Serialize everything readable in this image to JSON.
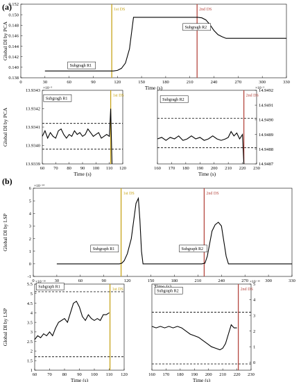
{
  "panel_labels": {
    "a": "(a)",
    "b": "(b)"
  },
  "colors": {
    "ds1": "#c7a41a",
    "ds2": "#b5473f",
    "line": "#000000"
  },
  "chart_data": [
    {
      "id": "a_top",
      "type": "line",
      "xlabel": "Time (s)",
      "ylabel": "Global DI by PCA",
      "xlim": [
        0,
        330
      ],
      "ylim": [
        0.138,
        0.152
      ],
      "xticks": [
        0,
        30,
        60,
        90,
        120,
        150,
        180,
        210,
        240,
        270,
        300,
        330
      ],
      "yticks": [
        0.138,
        0.14,
        0.142,
        0.144,
        0.146,
        0.148,
        0.15,
        0.152
      ],
      "ytick_labels": [
        "0.138",
        "0.140",
        "0.142",
        "0.144",
        "0.146",
        "0.148",
        "0.150",
        "0.152"
      ],
      "x": [
        30,
        60,
        100,
        110,
        115,
        120,
        125,
        130,
        135,
        140,
        220,
        225,
        230,
        235,
        240,
        245,
        250,
        255,
        330
      ],
      "y": [
        0.1393,
        0.1393,
        0.1393,
        0.1393,
        0.1393,
        0.1394,
        0.1398,
        0.1408,
        0.1435,
        0.1495,
        0.1495,
        0.1494,
        0.149,
        0.1481,
        0.147,
        0.1462,
        0.1458,
        0.1455,
        0.1455
      ],
      "vlines": [
        {
          "x": 113,
          "color": "ds1",
          "label": "1st DS"
        },
        {
          "x": 219,
          "color": "ds2",
          "label": "2nd DS"
        }
      ],
      "annotations": [
        {
          "text": "Subgragh R1",
          "x": 60,
          "y": 0.1401
        },
        {
          "text": "Subgragh R2",
          "x": 203,
          "y": 0.1474
        }
      ]
    },
    {
      "id": "a_left",
      "type": "line",
      "xlabel": "Time (s)",
      "ylabel": "Global DI by PCA",
      "exponent": "×10⁻²",
      "xlim": [
        60,
        120
      ],
      "ylim": [
        13.9339,
        13.9343
      ],
      "xticks": [
        60,
        70,
        80,
        90,
        100,
        110,
        120
      ],
      "yticks": [
        13.9339,
        13.934,
        13.9341,
        13.9342,
        13.9343
      ],
      "ytick_labels": [
        "13.9339",
        "13.9340",
        "13.9341",
        "13.9342",
        "13.9343"
      ],
      "x": [
        60,
        62,
        64,
        66,
        68,
        70,
        72,
        74,
        76,
        78,
        80,
        82,
        84,
        86,
        88,
        90,
        92,
        94,
        96,
        98,
        100,
        102,
        104,
        106,
        108,
        110,
        111,
        112
      ],
      "y": [
        13.93405,
        13.93408,
        13.93404,
        13.93407,
        13.93405,
        13.93404,
        13.93408,
        13.93409,
        13.93406,
        13.93404,
        13.93406,
        13.93405,
        13.93408,
        13.93406,
        13.93407,
        13.93405,
        13.93406,
        13.93409,
        13.93407,
        13.93405,
        13.93406,
        13.93407,
        13.93404,
        13.93405,
        13.93406,
        13.93405,
        13.9342,
        13.9339
      ],
      "hlines": [
        13.93412,
        13.93398
      ],
      "vlines": [
        {
          "x": 111,
          "color": "ds1",
          "label": "1st DS"
        }
      ],
      "annotations": [
        {
          "text": "Subgragh R1",
          "x": 62,
          "y": 13.93425
        }
      ]
    },
    {
      "id": "a_right",
      "type": "line",
      "xlabel": "Time (s)",
      "exponent": "×10⁻²",
      "xlim": [
        160,
        230
      ],
      "ylim": [
        14.9487,
        14.9492
      ],
      "xticks": [
        160,
        170,
        180,
        190,
        200,
        210,
        220,
        230
      ],
      "yticks": [
        14.9487,
        14.9488,
        14.9489,
        14.949,
        14.9491,
        14.9492
      ],
      "ytick_labels": [
        "14.9487",
        "14.9488",
        "14.9489",
        "14.9490",
        "14.9491",
        "14.9492"
      ],
      "x": [
        160,
        163,
        166,
        169,
        172,
        175,
        178,
        181,
        184,
        187,
        190,
        193,
        196,
        199,
        202,
        205,
        208,
        210,
        212,
        214,
        216,
        218,
        220,
        221
      ],
      "y": [
        14.94887,
        14.94888,
        14.94886,
        14.94888,
        14.94887,
        14.94889,
        14.94886,
        14.94887,
        14.94889,
        14.94887,
        14.94888,
        14.94886,
        14.94887,
        14.94889,
        14.94887,
        14.94886,
        14.94887,
        14.94888,
        14.94892,
        14.94889,
        14.94891,
        14.94887,
        14.9489,
        14.9487
      ],
      "hlines": [
        14.94901,
        14.94881
      ],
      "vlines": [
        {
          "x": 221,
          "color": "ds2",
          "label": "2nd DS"
        }
      ],
      "annotations": [
        {
          "text": "Subgragh R2",
          "x": 163,
          "y": 14.94913
        }
      ]
    },
    {
      "id": "b_top",
      "type": "line",
      "xlabel": "Time (s)",
      "ylabel": "Global DI by LSP",
      "exponent": "×10⁻¹⁴",
      "xlim": [
        0,
        330
      ],
      "ylim": [
        -1,
        6
      ],
      "xticks": [
        0,
        30,
        60,
        90,
        120,
        150,
        180,
        210,
        240,
        270,
        300,
        330
      ],
      "yticks": [
        -1,
        0,
        1,
        2,
        3,
        4,
        5,
        6
      ],
      "ytick_labels": [
        "-1",
        "0",
        "1",
        "2",
        "3",
        "4",
        "5",
        "6"
      ],
      "x": [
        30,
        60,
        100,
        110,
        113,
        116,
        120,
        125,
        128,
        131,
        134,
        136,
        138,
        140,
        215,
        219,
        222,
        225,
        228,
        232,
        236,
        240,
        243,
        246,
        249,
        330
      ],
      "y": [
        0,
        0,
        0,
        0,
        0.05,
        0.25,
        0.8,
        2.0,
        3.4,
        4.8,
        5.2,
        3.5,
        1.0,
        0,
        0,
        0.05,
        0.6,
        1.6,
        2.6,
        3.1,
        3.3,
        3.0,
        1.8,
        0.6,
        0,
        0
      ],
      "vlines": [
        {
          "x": 112,
          "color": "ds1",
          "label": "1st DS"
        },
        {
          "x": 218,
          "color": "ds2",
          "label": "2nd DS"
        }
      ],
      "annotations": [
        {
          "text": "Subgraph R1",
          "x": 75,
          "y": 1.1
        },
        {
          "text": "Subgraph R2",
          "x": 188,
          "y": 1.1
        }
      ]
    },
    {
      "id": "b_left",
      "type": "line",
      "xlabel": "Time (s)",
      "ylabel": "Global DI by LSP",
      "exponent": "×10⁻¹⁶",
      "xlim": [
        60,
        120
      ],
      "ylim": [
        1,
        5.5
      ],
      "xticks": [
        60,
        70,
        80,
        90,
        100,
        110,
        120
      ],
      "yticks": [
        1,
        1.5,
        2,
        2.5,
        3,
        3.5,
        4,
        4.5,
        5,
        5.5
      ],
      "ytick_labels": [
        "1",
        "1.5",
        "2",
        "2.5",
        "3",
        "3.5",
        "4",
        "4.5",
        "5",
        "5.5"
      ],
      "x": [
        60,
        62,
        64,
        66,
        68,
        70,
        72,
        74,
        76,
        78,
        80,
        82,
        84,
        86,
        88,
        90,
        92,
        94,
        96,
        98,
        100,
        102,
        104,
        106,
        108,
        110
      ],
      "y": [
        2.6,
        2.8,
        2.7,
        2.9,
        2.8,
        3.0,
        2.8,
        3.2,
        3.5,
        3.6,
        3.7,
        3.5,
        4.0,
        4.5,
        4.6,
        4.3,
        3.8,
        3.6,
        3.9,
        3.7,
        3.6,
        3.7,
        3.6,
        3.9,
        3.9,
        4.0
      ],
      "hlines": [
        5.1,
        1.7
      ],
      "vlines": [
        {
          "x": 110.5,
          "color": "ds1",
          "label": "1st DS"
        }
      ],
      "annotations": [
        {
          "text": "Subgraph R1",
          "x": 62,
          "y": 5.3
        }
      ]
    },
    {
      "id": "b_right",
      "type": "line",
      "xlabel": "Time (s)",
      "exponent": "×10⁻¹⁶",
      "xlim": [
        160,
        230
      ],
      "ylim": [
        -0.5,
        5
      ],
      "xticks": [
        160,
        170,
        180,
        190,
        200,
        210,
        220,
        230
      ],
      "yticks": [
        0,
        1,
        2,
        3,
        4,
        5
      ],
      "ytick_labels": [
        "0",
        "1",
        "2",
        "3",
        "4",
        "5"
      ],
      "x": [
        160,
        163,
        166,
        169,
        172,
        175,
        178,
        181,
        184,
        187,
        190,
        193,
        196,
        199,
        202,
        205,
        208,
        210,
        212,
        214,
        216,
        218,
        220
      ],
      "y": [
        2.3,
        2.2,
        2.3,
        2.2,
        2.3,
        2.2,
        2.3,
        2.2,
        2.0,
        1.8,
        1.7,
        1.6,
        1.4,
        1.2,
        1.0,
        0.9,
        0.8,
        0.9,
        1.2,
        1.8,
        2.4,
        2.2,
        2.2
      ],
      "hlines": [
        3.2,
        -0.1
      ],
      "vlines": [
        {
          "x": 221,
          "color": "ds2",
          "label": "2nd DS"
        }
      ],
      "annotations": [
        {
          "text": "Subgraph R2",
          "x": 163,
          "y": 4.5
        }
      ]
    }
  ]
}
